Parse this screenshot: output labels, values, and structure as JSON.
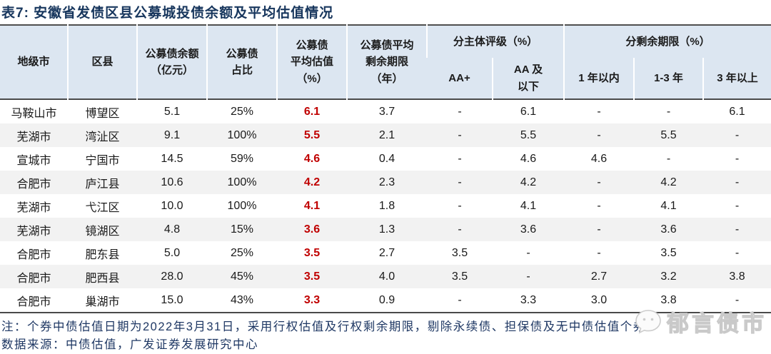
{
  "title": "表7:  安徽省发债区县公募城投债余额及平均估值情况",
  "table": {
    "columns": [
      "地级市",
      "区县",
      "公募债余额\n（亿元）",
      "公募债\n占比",
      "公募债\n平均估值\n（%）",
      "公募债平均\n剩余期限\n（年）",
      "AA+",
      "AA 及\n以下",
      "1 年以内",
      "1-3 年",
      "3 年以上"
    ],
    "groups": [
      {
        "label": "分主体评级（%）",
        "span": 2
      },
      {
        "label": "分剩余期限（%）",
        "span": 3
      }
    ],
    "highlight_col_index": 4,
    "rows": [
      [
        "马鞍山市",
        "博望区",
        "5.1",
        "25%",
        "6.1",
        "3.7",
        "-",
        "6.1",
        "-",
        "-",
        "6.1"
      ],
      [
        "芜湖市",
        "湾沚区",
        "9.1",
        "100%",
        "5.5",
        "2.1",
        "-",
        "5.5",
        "-",
        "5.5",
        "-"
      ],
      [
        "宣城市",
        "宁国市",
        "14.5",
        "59%",
        "4.6",
        "0.4",
        "-",
        "4.6",
        "4.6",
        "-",
        "-"
      ],
      [
        "合肥市",
        "庐江县",
        "10.6",
        "100%",
        "4.2",
        "2.3",
        "-",
        "4.2",
        "-",
        "4.2",
        "-"
      ],
      [
        "芜湖市",
        "弋江区",
        "10.0",
        "100%",
        "4.1",
        "1.8",
        "-",
        "4.1",
        "-",
        "4.1",
        "-"
      ],
      [
        "芜湖市",
        "镜湖区",
        "4.8",
        "15%",
        "3.6",
        "1.3",
        "-",
        "3.6",
        "-",
        "3.6",
        "-"
      ],
      [
        "合肥市",
        "肥东县",
        "5.0",
        "25%",
        "3.5",
        "2.7",
        "3.5",
        "-",
        "-",
        "3.5",
        "-"
      ],
      [
        "合肥市",
        "肥西县",
        "28.0",
        "45%",
        "3.5",
        "4.0",
        "3.5",
        "-",
        "2.7",
        "3.2",
        "3.8"
      ],
      [
        "合肥市",
        "巢湖市",
        "15.0",
        "43%",
        "3.3",
        "0.9",
        "-",
        "3.3",
        "3.0",
        "3.8",
        "-"
      ]
    ]
  },
  "notes": {
    "note1": "注：个券中债估值日期为2022年3月31日，采用行权估值及行权剩余期限，剔除永续债、担保债及无中债估值个券",
    "note2": "数据来源：中债估值，广发证券发展研究中心"
  },
  "watermark": {
    "text": "郁言债市"
  },
  "colors": {
    "title": "#17365d",
    "header_bg": "#dce6f1",
    "row_alt_bg": "#f2f2f2",
    "accent_red": "#c00000",
    "border_dark": "#4a4a4a",
    "note_navy": "#1f3864",
    "watermark_gray": "#c9c9c9"
  }
}
